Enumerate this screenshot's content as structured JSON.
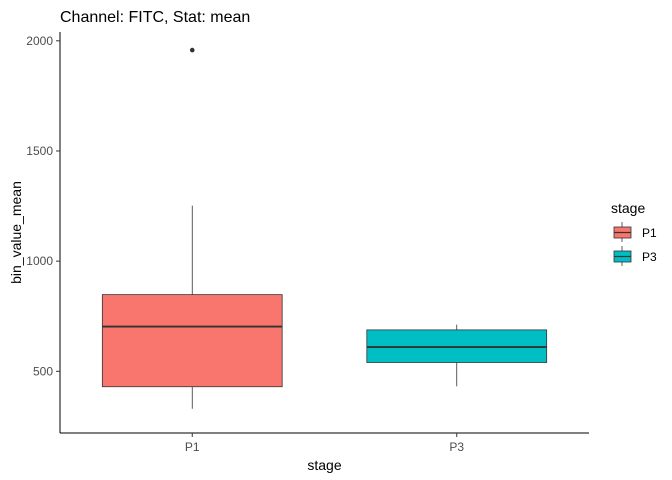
{
  "chart_data": {
    "type": "boxplot",
    "title": "Channel: FITC, Stat: mean",
    "xlabel": "stage",
    "ylabel": "bin_value_mean",
    "categories": [
      "P1",
      "P3"
    ],
    "ylim": [
      220,
      2040
    ],
    "yticks": [
      500,
      1000,
      1500,
      2000
    ],
    "grid": false,
    "legend": {
      "title": "stage",
      "position": "right",
      "entries": [
        {
          "label": "P1",
          "color": "#F8766D"
        },
        {
          "label": "P3",
          "color": "#00BFC4"
        }
      ]
    },
    "boxes": [
      {
        "category": "P1",
        "min": 330,
        "q1": 430,
        "median": 703,
        "q3": 848,
        "max": 1252,
        "outliers": [
          1958
        ],
        "color": "#F8766D"
      },
      {
        "category": "P3",
        "min": 432,
        "q1": 540,
        "median": 610,
        "q3": 688,
        "max": 712,
        "outliers": [],
        "color": "#00BFC4"
      }
    ]
  }
}
